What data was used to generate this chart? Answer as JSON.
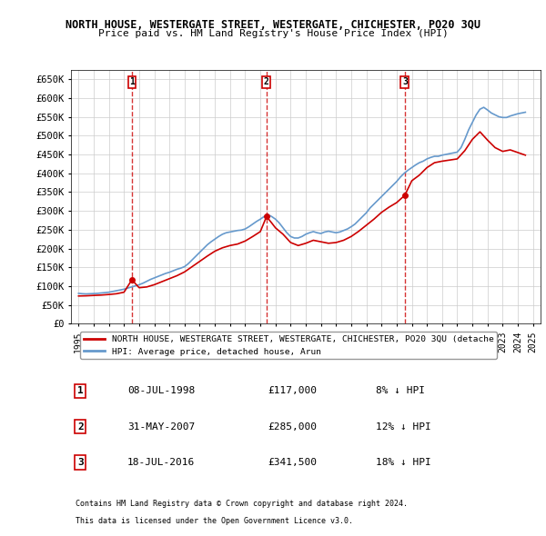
{
  "title1": "NORTH HOUSE, WESTERGATE STREET, WESTERGATE, CHICHESTER, PO20 3QU",
  "title2": "Price paid vs. HM Land Registry's House Price Index (HPI)",
  "ylabel_ticks": [
    "£0",
    "£50K",
    "£100K",
    "£150K",
    "£200K",
    "£250K",
    "£300K",
    "£350K",
    "£400K",
    "£450K",
    "£500K",
    "£550K",
    "£600K",
    "£650K"
  ],
  "ytick_values": [
    0,
    50000,
    100000,
    150000,
    200000,
    250000,
    300000,
    350000,
    400000,
    450000,
    500000,
    550000,
    600000,
    650000
  ],
  "ylim": [
    0,
    675000
  ],
  "xlim_start": 1994.5,
  "xlim_end": 2025.5,
  "xtick_years": [
    1995,
    1996,
    1997,
    1998,
    1999,
    2000,
    2001,
    2002,
    2003,
    2004,
    2005,
    2006,
    2007,
    2008,
    2009,
    2010,
    2011,
    2012,
    2013,
    2014,
    2015,
    2016,
    2017,
    2018,
    2019,
    2020,
    2021,
    2022,
    2023,
    2024,
    2025
  ],
  "sale_dates": [
    1998.52,
    2007.41,
    2016.54
  ],
  "sale_prices": [
    117000,
    285000,
    341500
  ],
  "sale_labels": [
    "1",
    "2",
    "3"
  ],
  "sale_color": "#cc0000",
  "hpi_color": "#6699cc",
  "legend_label_red": "NORTH HOUSE, WESTERGATE STREET, WESTERGATE, CHICHESTER, PO20 3QU (detache",
  "legend_label_blue": "HPI: Average price, detached house, Arun",
  "table_rows": [
    {
      "num": "1",
      "date": "08-JUL-1998",
      "price": "£117,000",
      "hpi": "8% ↓ HPI"
    },
    {
      "num": "2",
      "date": "31-MAY-2007",
      "price": "£285,000",
      "hpi": "12% ↓ HPI"
    },
    {
      "num": "3",
      "date": "18-JUL-2016",
      "price": "£341,500",
      "hpi": "18% ↓ HPI"
    }
  ],
  "footer1": "Contains HM Land Registry data © Crown copyright and database right 2024.",
  "footer2": "This data is licensed under the Open Government Licence v3.0.",
  "background_color": "#ffffff",
  "grid_color": "#cccccc",
  "hpi_data_x": [
    1995.0,
    1995.25,
    1995.5,
    1995.75,
    1996.0,
    1996.25,
    1996.5,
    1996.75,
    1997.0,
    1997.25,
    1997.5,
    1997.75,
    1998.0,
    1998.25,
    1998.5,
    1998.75,
    1999.0,
    1999.25,
    1999.5,
    1999.75,
    2000.0,
    2000.25,
    2000.5,
    2000.75,
    2001.0,
    2001.25,
    2001.5,
    2001.75,
    2002.0,
    2002.25,
    2002.5,
    2002.75,
    2003.0,
    2003.25,
    2003.5,
    2003.75,
    2004.0,
    2004.25,
    2004.5,
    2004.75,
    2005.0,
    2005.25,
    2005.5,
    2005.75,
    2006.0,
    2006.25,
    2006.5,
    2006.75,
    2007.0,
    2007.25,
    2007.5,
    2007.75,
    2008.0,
    2008.25,
    2008.5,
    2008.75,
    2009.0,
    2009.25,
    2009.5,
    2009.75,
    2010.0,
    2010.25,
    2010.5,
    2010.75,
    2011.0,
    2011.25,
    2011.5,
    2011.75,
    2012.0,
    2012.25,
    2012.5,
    2012.75,
    2013.0,
    2013.25,
    2013.5,
    2013.75,
    2014.0,
    2014.25,
    2014.5,
    2014.75,
    2015.0,
    2015.25,
    2015.5,
    2015.75,
    2016.0,
    2016.25,
    2016.5,
    2016.75,
    2017.0,
    2017.25,
    2017.5,
    2017.75,
    2018.0,
    2018.25,
    2018.5,
    2018.75,
    2019.0,
    2019.25,
    2019.5,
    2019.75,
    2020.0,
    2020.25,
    2020.5,
    2020.75,
    2021.0,
    2021.25,
    2021.5,
    2021.75,
    2022.0,
    2022.25,
    2022.5,
    2022.75,
    2023.0,
    2023.25,
    2023.5,
    2023.75,
    2024.0,
    2024.25,
    2024.5
  ],
  "hpi_data_y": [
    81000,
    80000,
    79500,
    80000,
    80500,
    81000,
    82000,
    83000,
    84000,
    86000,
    88000,
    90000,
    92000,
    95000,
    98000,
    101000,
    104000,
    108000,
    113000,
    118000,
    122000,
    126000,
    130000,
    134000,
    137000,
    141000,
    145000,
    148000,
    152000,
    160000,
    170000,
    180000,
    190000,
    200000,
    210000,
    218000,
    225000,
    232000,
    238000,
    242000,
    244000,
    246000,
    248000,
    249000,
    252000,
    258000,
    265000,
    272000,
    278000,
    285000,
    290000,
    285000,
    278000,
    268000,
    255000,
    242000,
    232000,
    228000,
    228000,
    232000,
    238000,
    242000,
    245000,
    242000,
    240000,
    244000,
    246000,
    244000,
    242000,
    244000,
    248000,
    252000,
    258000,
    265000,
    275000,
    285000,
    295000,
    308000,
    318000,
    328000,
    338000,
    348000,
    358000,
    368000,
    378000,
    390000,
    400000,
    408000,
    415000,
    422000,
    428000,
    432000,
    438000,
    442000,
    445000,
    445000,
    448000,
    450000,
    452000,
    454000,
    456000,
    468000,
    490000,
    515000,
    535000,
    555000,
    570000,
    575000,
    568000,
    560000,
    555000,
    550000,
    548000,
    548000,
    552000,
    555000,
    558000,
    560000,
    562000
  ],
  "price_line_x": [
    1995.0,
    1995.5,
    1996.0,
    1996.5,
    1997.0,
    1997.5,
    1998.0,
    1998.52,
    1999.0,
    1999.5,
    2000.0,
    2000.5,
    2001.0,
    2001.5,
    2002.0,
    2002.5,
    2003.0,
    2003.5,
    2004.0,
    2004.5,
    2005.0,
    2005.5,
    2006.0,
    2006.5,
    2007.0,
    2007.41,
    2007.75,
    2008.0,
    2008.5,
    2009.0,
    2009.5,
    2010.0,
    2010.5,
    2011.0,
    2011.5,
    2012.0,
    2012.5,
    2013.0,
    2013.5,
    2014.0,
    2014.5,
    2015.0,
    2015.5,
    2016.0,
    2016.54,
    2017.0,
    2017.5,
    2018.0,
    2018.5,
    2019.0,
    2019.5,
    2020.0,
    2020.5,
    2021.0,
    2021.5,
    2022.0,
    2022.5,
    2023.0,
    2023.5,
    2024.0,
    2024.5
  ],
  "price_line_y": [
    74000,
    74500,
    75500,
    76500,
    78000,
    80000,
    84000,
    117000,
    96000,
    98000,
    104000,
    112000,
    120000,
    128000,
    138000,
    152000,
    166000,
    180000,
    193000,
    202000,
    208000,
    212000,
    220000,
    232000,
    245000,
    285000,
    268000,
    255000,
    238000,
    216000,
    208000,
    214000,
    222000,
    218000,
    214000,
    216000,
    222000,
    232000,
    246000,
    262000,
    278000,
    296000,
    310000,
    322000,
    341500,
    380000,
    395000,
    415000,
    428000,
    432000,
    435000,
    438000,
    460000,
    490000,
    510000,
    488000,
    468000,
    458000,
    462000,
    455000,
    448000
  ]
}
